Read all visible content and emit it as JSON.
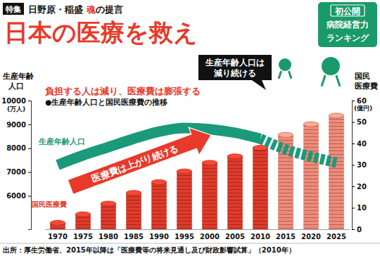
{
  "header": {
    "tag": "特集",
    "kicker": [
      "日野原・稲盛 ",
      "魂",
      "の提言"
    ],
    "title": "日本の医療を救え",
    "badge": [
      "初公開",
      "病院経営力",
      "ランキング"
    ]
  },
  "chart_data": {
    "type": "bar",
    "title": "負担する人は減り、医療費は膨張する",
    "subtitle": "●生産年齢人口と国民医療費の推移",
    "categories": [
      "1970",
      "1975",
      "1980",
      "1985",
      "1990",
      "1995",
      "2000",
      "2005",
      "2010",
      "2015",
      "2020",
      "2025"
    ],
    "y_label": [
      "生産年齢",
      "人口"
    ],
    "y_unit": "(万人)",
    "ylim": [
      4600,
      10000
    ],
    "yticks": [
      6000,
      7000,
      8000,
      9000,
      10000
    ],
    "y2_label": [
      "国民",
      "医療費"
    ],
    "y2_unit": "(億円)",
    "y2lim": [
      0,
      60
    ],
    "y2ticks": [
      0,
      10,
      20,
      30,
      40,
      50,
      60
    ],
    "grid": false,
    "series": [
      {
        "name": "国民医療費",
        "type": "bar",
        "axis": "y2",
        "colors": [
          "#e03a2a",
          "#e03a2a",
          "#e03a2a",
          "#e03a2a",
          "#e03a2a",
          "#e03a2a",
          "#e03a2a",
          "#e03a2a",
          "#e03a2a",
          "#f08a78",
          "#f08a78",
          "#f08a78"
        ],
        "values": [
          3,
          7,
          12,
          17,
          22,
          27,
          31,
          34,
          38,
          44,
          49,
          53
        ]
      },
      {
        "name": "生産年齢人口",
        "type": "line",
        "color": "#1a9a7a",
        "line_style": "solid",
        "values": [
          7300,
          7700,
          8050,
          8400,
          8700,
          8850,
          8800,
          8650,
          8400,
          null,
          null,
          null
        ]
      },
      {
        "type": "line",
        "color": "#1a9a7a",
        "line_style": "dashed",
        "values": [
          null,
          null,
          null,
          null,
          null,
          null,
          null,
          null,
          8400,
          7950,
          7650,
          7400
        ]
      }
    ],
    "annotations": [
      {
        "text": [
          "生産年齢人口は",
          "減り続ける"
        ]
      },
      {
        "text": "医療費は上がり続ける"
      }
    ],
    "source": "出所：厚生労働省、2015年以降は「医療費等の将来見通し及び財政影響試算」（2010年）"
  }
}
